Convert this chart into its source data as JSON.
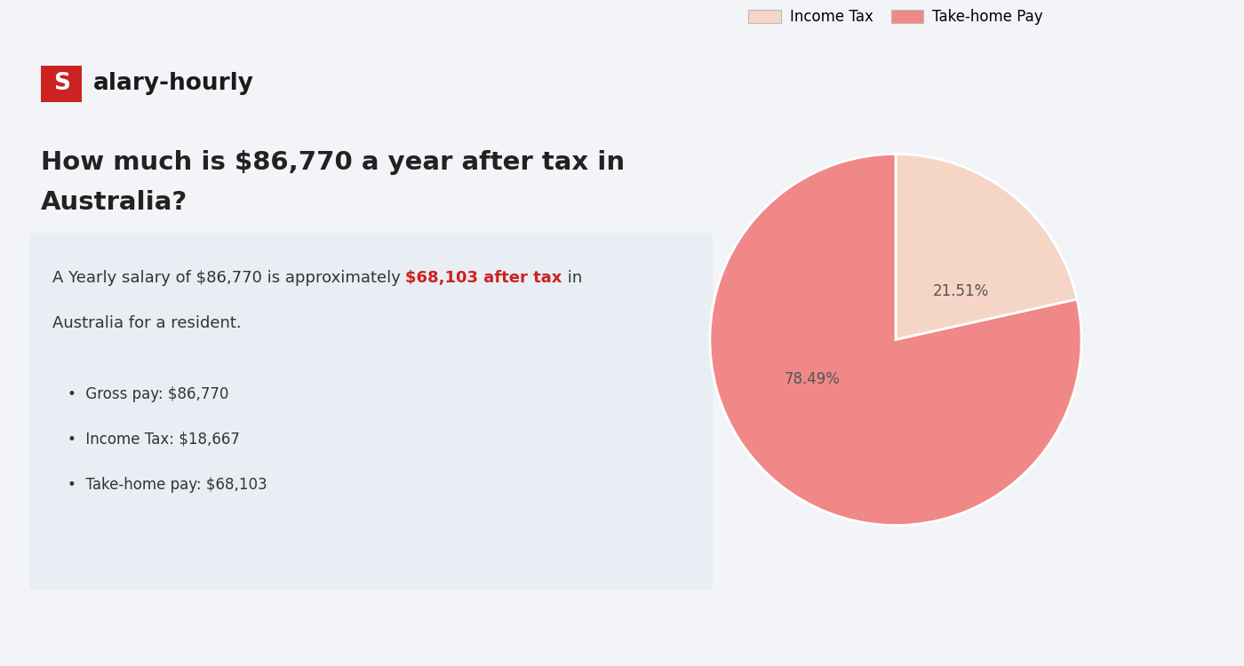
{
  "title_line1": "How much is $86,770 a year after tax in",
  "title_line2": "Australia?",
  "logo_bg_color": "#cc2222",
  "logo_text_color": "#ffffff",
  "logo_rest_color": "#1a1a1a",
  "heading_color": "#222222",
  "box_bg_color": "#e8eef4",
  "body_text_normal": "A Yearly salary of $86,770 is approximately ",
  "body_text_highlight": "$68,103 after tax",
  "body_text_end": " in",
  "body_text_line2": "Australia for a resident.",
  "highlight_color": "#cc2222",
  "bullet_items": [
    "Gross pay: $86,770",
    "Income Tax: $18,667",
    "Take-home pay: $68,103"
  ],
  "bullet_color": "#333333",
  "pie_values": [
    21.51,
    78.49
  ],
  "pie_labels": [
    "Income Tax",
    "Take-home Pay"
  ],
  "pie_colors": [
    "#f5d5c5",
    "#f08888"
  ],
  "pie_pct_labels": [
    "21.51%",
    "78.49%"
  ],
  "legend_colors": [
    "#f5d5c5",
    "#f08888"
  ],
  "bg_color": "#f2f4f7",
  "body_fontsize": 13,
  "bullet_fontsize": 12,
  "title_fontsize": 21
}
